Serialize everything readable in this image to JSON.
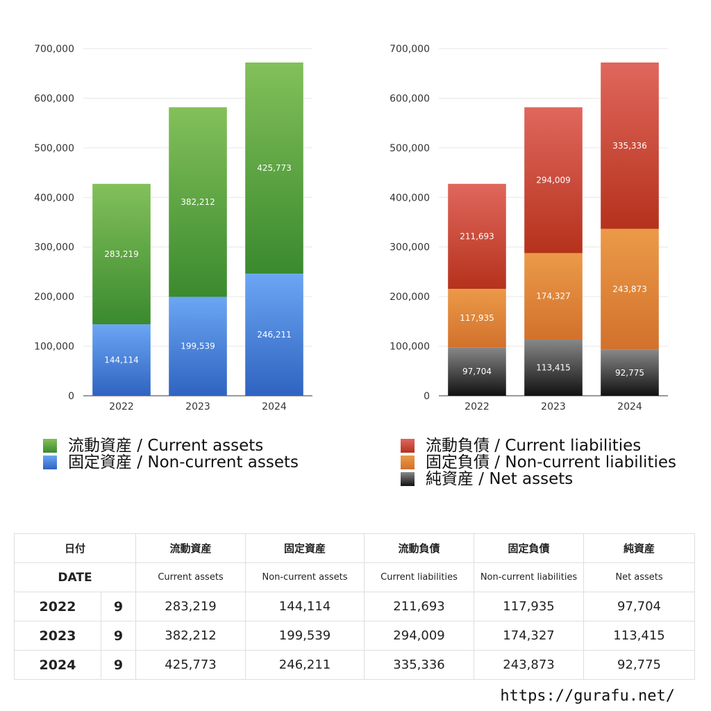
{
  "colors": {
    "current_assets": [
      "#83c05a",
      "#3a8a2e"
    ],
    "non_current_assets": [
      "#6ba6f3",
      "#2f63c0"
    ],
    "current_liabilities": [
      "#e0675d",
      "#b5321c"
    ],
    "non_current_liabilities": [
      "#eb9a48",
      "#d2712c"
    ],
    "net_assets": [
      "#888888",
      "#111111"
    ]
  },
  "chart_data": [
    {
      "type": "bar",
      "stacked": true,
      "categories": [
        "2022",
        "2023",
        "2024"
      ],
      "ylim": [
        0,
        700000
      ],
      "yticks": [
        "0",
        "100,000",
        "200,000",
        "300,000",
        "400,000",
        "500,000",
        "600,000",
        "700,000"
      ],
      "series": [
        {
          "name": "固定資産 / Non-current assets",
          "values": [
            144114,
            199539,
            246211
          ],
          "labels": [
            "144,114",
            "199,539",
            "246,211"
          ],
          "color_key": "non_current_assets"
        },
        {
          "name": "流動資産 / Current assets",
          "values": [
            283219,
            382212,
            425773
          ],
          "labels": [
            "283,219",
            "382,212",
            "425,773"
          ],
          "color_key": "current_assets"
        }
      ],
      "legend": [
        "流動資産 / Current assets",
        "固定資産 / Non-current assets"
      ],
      "legend_position": "bottom"
    },
    {
      "type": "bar",
      "stacked": true,
      "categories": [
        "2022",
        "2023",
        "2024"
      ],
      "ylim": [
        0,
        700000
      ],
      "yticks": [
        "0",
        "100,000",
        "200,000",
        "300,000",
        "400,000",
        "500,000",
        "600,000",
        "700,000"
      ],
      "series": [
        {
          "name": "純資産 / Net assets",
          "values": [
            97704,
            113415,
            92775
          ],
          "labels": [
            "97,704",
            "113,415",
            "92,775"
          ],
          "color_key": "net_assets"
        },
        {
          "name": "固定負債 / Non-current liabilities",
          "values": [
            117935,
            174327,
            243873
          ],
          "labels": [
            "117,935",
            "174,327",
            "243,873"
          ],
          "color_key": "non_current_liabilities"
        },
        {
          "name": "流動負債 / Current liabilities",
          "values": [
            211693,
            294009,
            335336
          ],
          "labels": [
            "211,693",
            "294,009",
            "335,336"
          ],
          "color_key": "current_liabilities"
        }
      ],
      "legend": [
        "流動負債 / Current liabilities",
        "固定負債 / Non-current liabilities",
        "純資産 / Net assets"
      ],
      "legend_position": "bottom"
    }
  ],
  "table": {
    "header_jp": [
      "日付",
      "流動資産",
      "固定資産",
      "流動負債",
      "固定負債",
      "純資産"
    ],
    "header_en": [
      "DATE",
      "Current assets",
      "Non-current assets",
      "Current liabilities",
      "Non-current liabilities",
      "Net assets"
    ],
    "rows": [
      {
        "year": "2022",
        "month": "9",
        "values": [
          "283,219",
          "144,114",
          "211,693",
          "117,935",
          "97,704"
        ]
      },
      {
        "year": "2023",
        "month": "9",
        "values": [
          "382,212",
          "199,539",
          "294,009",
          "174,327",
          "113,415"
        ]
      },
      {
        "year": "2024",
        "month": "9",
        "values": [
          "425,773",
          "246,211",
          "335,336",
          "243,873",
          "92,775"
        ]
      }
    ]
  },
  "footer": {
    "url": "https://gurafu.net/"
  }
}
